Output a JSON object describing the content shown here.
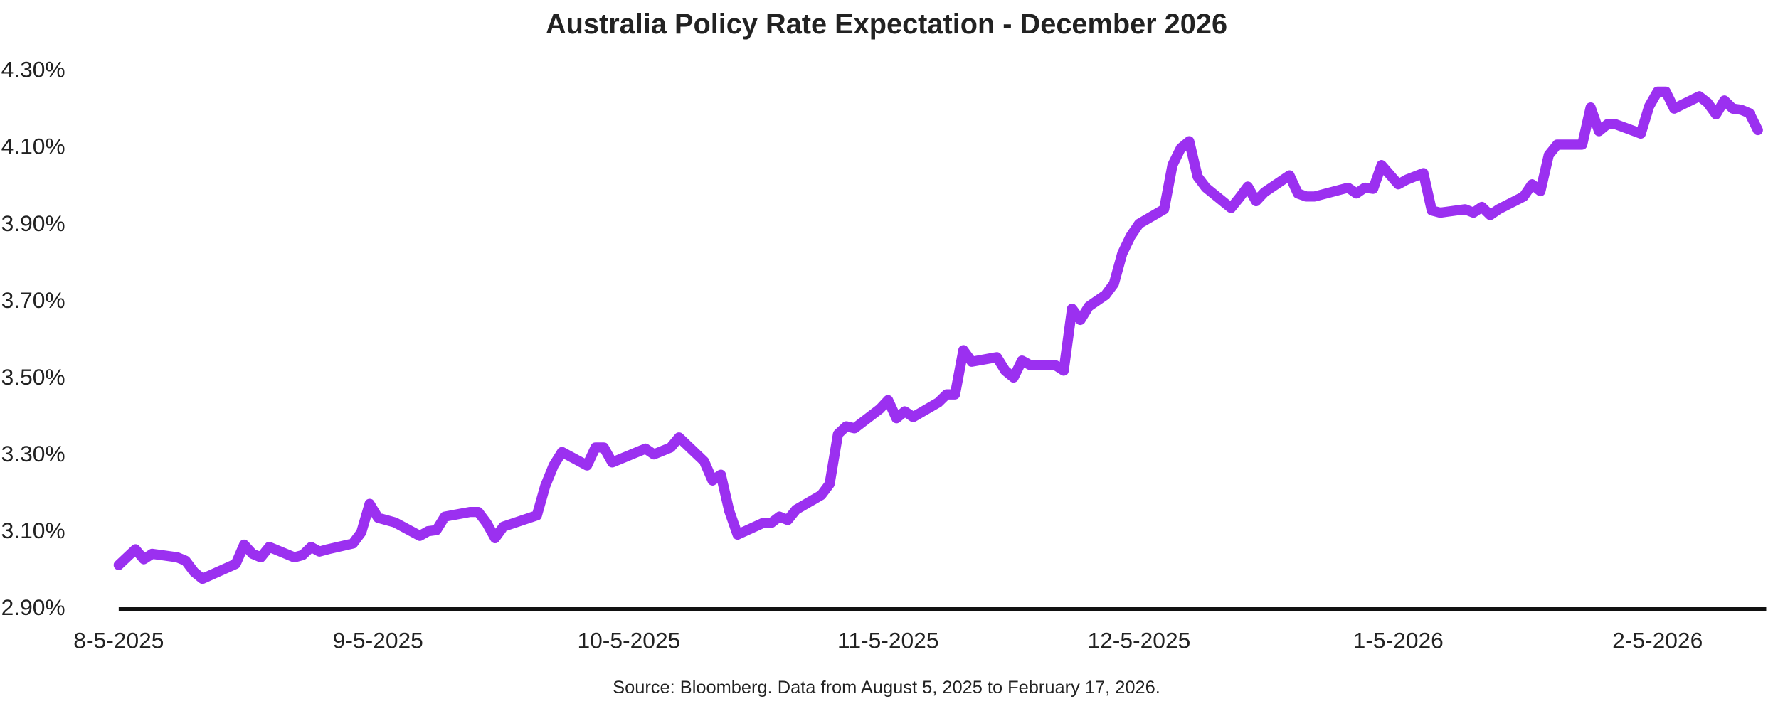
{
  "chart_data": {
    "type": "line",
    "title": "Australia Policy Rate Expectation - December 2026",
    "source": "Source: Bloomberg. Data from August 5, 2025 to February 17, 2026.",
    "x": [
      "2025-08-05",
      "2025-08-07",
      "2025-08-08",
      "2025-08-09",
      "2025-08-12",
      "2025-08-13",
      "2025-08-14",
      "2025-08-15",
      "2025-08-19",
      "2025-08-20",
      "2025-08-21",
      "2025-08-22",
      "2025-08-23",
      "2025-08-26",
      "2025-08-27",
      "2025-08-28",
      "2025-08-29",
      "2025-08-30",
      "2025-09-02",
      "2025-09-03",
      "2025-09-04",
      "2025-09-05",
      "2025-09-07",
      "2025-09-10",
      "2025-09-11",
      "2025-09-12",
      "2025-09-13",
      "2025-09-16",
      "2025-09-17",
      "2025-09-18",
      "2025-09-19",
      "2025-09-20",
      "2025-09-24",
      "2025-09-25",
      "2025-09-26",
      "2025-09-27",
      "2025-09-30",
      "2025-10-01",
      "2025-10-02",
      "2025-10-03",
      "2025-10-07",
      "2025-10-08",
      "2025-10-10",
      "2025-10-11",
      "2025-10-14",
      "2025-10-15",
      "2025-10-16",
      "2025-10-17",
      "2025-10-18",
      "2025-10-21",
      "2025-10-22",
      "2025-10-23",
      "2025-10-24",
      "2025-10-25",
      "2025-10-28",
      "2025-10-29",
      "2025-10-30",
      "2025-10-31",
      "2025-11-01",
      "2025-11-04",
      "2025-11-05",
      "2025-11-06",
      "2025-11-07",
      "2025-11-08",
      "2025-11-11",
      "2025-11-12",
      "2025-11-13",
      "2025-11-14",
      "2025-11-15",
      "2025-11-18",
      "2025-11-19",
      "2025-11-20",
      "2025-11-21",
      "2025-11-22",
      "2025-11-25",
      "2025-11-26",
      "2025-11-27",
      "2025-11-28",
      "2025-11-29",
      "2025-12-01",
      "2025-12-02",
      "2025-12-03",
      "2025-12-04",
      "2025-12-05",
      "2025-12-08",
      "2025-12-09",
      "2025-12-10",
      "2025-12-11",
      "2025-12-12",
      "2025-12-13",
      "2025-12-16",
      "2025-12-17",
      "2025-12-18",
      "2025-12-19",
      "2025-12-20",
      "2025-12-23",
      "2025-12-24",
      "2025-12-25",
      "2025-12-26",
      "2025-12-30",
      "2025-12-31",
      "2026-01-01",
      "2026-01-02",
      "2026-01-03",
      "2026-01-05",
      "2026-01-06",
      "2026-01-08",
      "2026-01-09",
      "2026-01-10",
      "2026-01-13",
      "2026-01-14",
      "2026-01-15",
      "2026-01-16",
      "2026-01-17",
      "2026-01-20",
      "2026-01-21",
      "2026-01-22",
      "2026-01-23",
      "2026-01-24",
      "2026-01-27",
      "2026-01-28",
      "2026-01-29",
      "2026-01-30",
      "2026-01-31",
      "2026-02-03",
      "2026-02-04",
      "2026-02-05",
      "2026-02-06",
      "2026-02-07",
      "2026-02-10",
      "2026-02-11",
      "2026-02-12",
      "2026-02-13",
      "2026-02-14",
      "2026-02-15",
      "2026-02-16",
      "2026-02-17"
    ],
    "series": [
      {
        "name": "Australia Policy Rate Expectation",
        "color": "#9b30f0",
        "values": [
          3.015,
          3.056,
          3.03,
          3.044,
          3.035,
          3.026,
          2.997,
          2.979,
          3.018,
          3.068,
          3.044,
          3.035,
          3.062,
          3.035,
          3.041,
          3.062,
          3.05,
          3.056,
          3.071,
          3.1,
          3.174,
          3.138,
          3.126,
          3.091,
          3.103,
          3.106,
          3.141,
          3.153,
          3.153,
          3.124,
          3.085,
          3.115,
          3.144,
          3.221,
          3.274,
          3.309,
          3.274,
          3.321,
          3.321,
          3.282,
          3.318,
          3.303,
          3.321,
          3.347,
          3.285,
          3.235,
          3.25,
          3.156,
          3.094,
          3.124,
          3.124,
          3.141,
          3.132,
          3.159,
          3.197,
          3.226,
          3.356,
          3.376,
          3.371,
          3.421,
          3.444,
          3.397,
          3.415,
          3.4,
          3.438,
          3.459,
          3.459,
          3.574,
          3.544,
          3.556,
          3.521,
          3.503,
          3.547,
          3.535,
          3.535,
          3.521,
          3.682,
          3.653,
          3.688,
          3.718,
          3.747,
          3.826,
          3.871,
          3.903,
          3.941,
          4.056,
          4.1,
          4.118,
          4.026,
          3.997,
          3.944,
          3.971,
          4.0,
          3.962,
          3.985,
          4.029,
          3.982,
          3.974,
          3.974,
          3.997,
          3.982,
          3.997,
          3.994,
          4.056,
          4.006,
          4.018,
          4.035,
          3.938,
          3.932,
          3.941,
          3.932,
          3.947,
          3.926,
          3.941,
          3.974,
          4.006,
          3.988,
          4.082,
          4.109,
          4.109,
          4.206,
          4.144,
          4.162,
          4.162,
          4.138,
          4.209,
          4.247,
          4.247,
          4.203,
          4.235,
          4.218,
          4.188,
          4.224,
          4.203,
          4.2,
          4.191,
          4.147
        ]
      }
    ],
    "xlim": [
      "2025-08-05",
      "2026-02-18"
    ],
    "xticks": [
      {
        "value": "2025-08-05",
        "label": "8-5-2025"
      },
      {
        "value": "2025-09-05",
        "label": "9-5-2025"
      },
      {
        "value": "2025-10-05",
        "label": "10-5-2025"
      },
      {
        "value": "2025-11-05",
        "label": "11-5-2025"
      },
      {
        "value": "2025-12-05",
        "label": "12-5-2025"
      },
      {
        "value": "2026-01-05",
        "label": "1-5-2026"
      },
      {
        "value": "2026-02-05",
        "label": "2-5-2026"
      }
    ],
    "ylim": [
      2.9,
      4.3
    ],
    "yticks": [
      {
        "value": 2.9,
        "label": "2.90%"
      },
      {
        "value": 3.1,
        "label": "3.10%"
      },
      {
        "value": 3.3,
        "label": "3.30%"
      },
      {
        "value": 3.5,
        "label": "3.50%"
      },
      {
        "value": 3.7,
        "label": "3.70%"
      },
      {
        "value": 3.9,
        "label": "3.90%"
      },
      {
        "value": 4.1,
        "label": "4.10%"
      },
      {
        "value": 4.3,
        "label": "4.30%"
      }
    ],
    "grid": false
  }
}
